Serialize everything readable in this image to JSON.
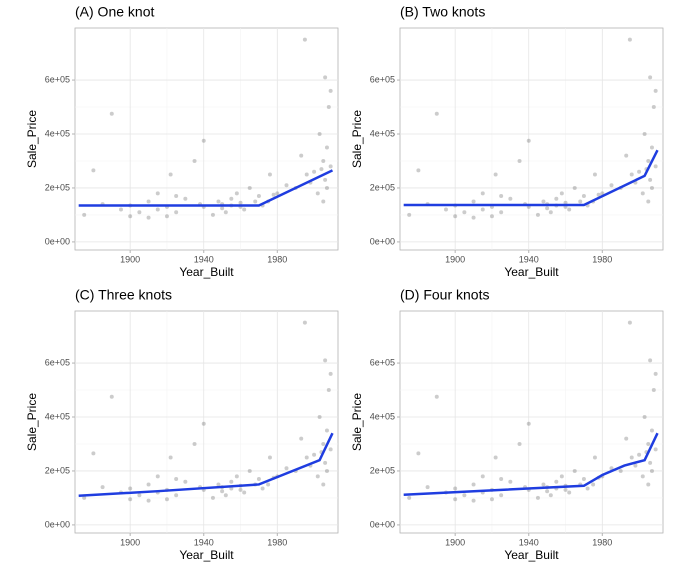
{
  "chart_data": [
    {
      "type": "scatter",
      "title": "(A) One knot",
      "x_label": "Year_Built",
      "y_label": "Sale_Price",
      "xlim": [
        1870,
        2013
      ],
      "ylim": [
        -30000,
        793000
      ],
      "xticks": [
        1900,
        1940,
        1980
      ],
      "yticks": [
        {
          "value": 0,
          "label": "0e+00"
        },
        {
          "value": 200000,
          "label": "2e+05"
        },
        {
          "value": 400000,
          "label": "4e+05"
        },
        {
          "value": 600000,
          "label": "6e+05"
        }
      ],
      "grid": true,
      "points": {
        "color": "#000000",
        "x": [
          1875,
          1880,
          1885,
          1890,
          1895,
          1900,
          1900,
          1905,
          1910,
          1910,
          1915,
          1915,
          1920,
          1920,
          1922,
          1925,
          1925,
          1930,
          1935,
          1938,
          1940,
          1940,
          1945,
          1948,
          1950,
          1950,
          1952,
          1955,
          1955,
          1958,
          1960,
          1960,
          1962,
          1965,
          1968,
          1970,
          1972,
          1975,
          1976,
          1978,
          1980,
          1985,
          1990,
          1993,
          1995,
          1996,
          1998,
          2000,
          2002,
          2003,
          2004,
          2005,
          2005,
          2006,
          2006,
          2007,
          2007,
          2008,
          2009,
          2009
        ],
        "y": [
          100000,
          265000,
          140000,
          475000,
          120000,
          135000,
          95000,
          110000,
          150000,
          90000,
          180000,
          120000,
          130000,
          95000,
          250000,
          170000,
          110000,
          160000,
          300000,
          140000,
          375000,
          130000,
          100000,
          150000,
          125000,
          140000,
          110000,
          135000,
          160000,
          180000,
          130000,
          145000,
          120000,
          200000,
          150000,
          170000,
          135000,
          150000,
          250000,
          175000,
          180000,
          210000,
          200000,
          320000,
          750000,
          250000,
          220000,
          260000,
          180000,
          400000,
          270000,
          300000,
          150000,
          610000,
          230000,
          350000,
          200000,
          500000,
          280000,
          560000
        ]
      },
      "fit": {
        "color": "#1f3de0",
        "x": [
          1872,
          1970,
          2010
        ],
        "y": [
          135000,
          135000,
          265000
        ]
      }
    },
    {
      "type": "scatter",
      "title": "(B) Two knots",
      "x_label": "Year_Built",
      "y_label": "Sale_Price",
      "xlim": [
        1870,
        2013
      ],
      "ylim": [
        -30000,
        793000
      ],
      "xticks": [
        1900,
        1940,
        1980
      ],
      "yticks": [
        {
          "value": 0,
          "label": "0e+00"
        },
        {
          "value": 200000,
          "label": "2e+05"
        },
        {
          "value": 400000,
          "label": "4e+05"
        },
        {
          "value": 600000,
          "label": "6e+05"
        }
      ],
      "grid": true,
      "points": {
        "color": "#000000",
        "x": [
          1875,
          1880,
          1885,
          1890,
          1895,
          1900,
          1900,
          1905,
          1910,
          1910,
          1915,
          1915,
          1920,
          1920,
          1922,
          1925,
          1925,
          1930,
          1935,
          1938,
          1940,
          1940,
          1945,
          1948,
          1950,
          1950,
          1952,
          1955,
          1955,
          1958,
          1960,
          1960,
          1962,
          1965,
          1968,
          1970,
          1972,
          1975,
          1976,
          1978,
          1980,
          1985,
          1990,
          1993,
          1995,
          1996,
          1998,
          2000,
          2002,
          2003,
          2004,
          2005,
          2005,
          2006,
          2006,
          2007,
          2007,
          2008,
          2009,
          2009
        ],
        "y": [
          100000,
          265000,
          140000,
          475000,
          120000,
          135000,
          95000,
          110000,
          150000,
          90000,
          180000,
          120000,
          130000,
          95000,
          250000,
          170000,
          110000,
          160000,
          300000,
          140000,
          375000,
          130000,
          100000,
          150000,
          125000,
          140000,
          110000,
          135000,
          160000,
          180000,
          130000,
          145000,
          120000,
          200000,
          150000,
          170000,
          135000,
          150000,
          250000,
          175000,
          180000,
          210000,
          200000,
          320000,
          750000,
          250000,
          220000,
          260000,
          180000,
          400000,
          270000,
          300000,
          150000,
          610000,
          230000,
          350000,
          200000,
          500000,
          280000,
          560000
        ]
      },
      "fit": {
        "color": "#1f3de0",
        "x": [
          1872,
          1970,
          2003,
          2010
        ],
        "y": [
          137000,
          137000,
          245000,
          340000
        ]
      }
    },
    {
      "type": "scatter",
      "title": "(C) Three knots",
      "x_label": "Year_Built",
      "y_label": "Sale_Price",
      "xlim": [
        1870,
        2013
      ],
      "ylim": [
        -30000,
        793000
      ],
      "xticks": [
        1900,
        1940,
        1980
      ],
      "yticks": [
        {
          "value": 0,
          "label": "0e+00"
        },
        {
          "value": 200000,
          "label": "2e+05"
        },
        {
          "value": 400000,
          "label": "4e+05"
        },
        {
          "value": 600000,
          "label": "6e+05"
        }
      ],
      "grid": true,
      "points": {
        "color": "#000000",
        "x": [
          1875,
          1880,
          1885,
          1890,
          1895,
          1900,
          1900,
          1905,
          1910,
          1910,
          1915,
          1915,
          1920,
          1920,
          1922,
          1925,
          1925,
          1930,
          1935,
          1938,
          1940,
          1940,
          1945,
          1948,
          1950,
          1950,
          1952,
          1955,
          1955,
          1958,
          1960,
          1960,
          1962,
          1965,
          1968,
          1970,
          1972,
          1975,
          1976,
          1978,
          1980,
          1985,
          1990,
          1993,
          1995,
          1996,
          1998,
          2000,
          2002,
          2003,
          2004,
          2005,
          2005,
          2006,
          2006,
          2007,
          2007,
          2008,
          2009,
          2009
        ],
        "y": [
          100000,
          265000,
          140000,
          475000,
          120000,
          135000,
          95000,
          110000,
          150000,
          90000,
          180000,
          120000,
          130000,
          95000,
          250000,
          170000,
          110000,
          160000,
          300000,
          140000,
          375000,
          130000,
          100000,
          150000,
          125000,
          140000,
          110000,
          135000,
          160000,
          180000,
          130000,
          145000,
          120000,
          200000,
          150000,
          170000,
          135000,
          150000,
          250000,
          175000,
          180000,
          210000,
          200000,
          320000,
          750000,
          250000,
          220000,
          260000,
          180000,
          400000,
          270000,
          300000,
          150000,
          610000,
          230000,
          350000,
          200000,
          500000,
          280000,
          560000
        ]
      },
      "fit": {
        "color": "#1f3de0",
        "x": [
          1872,
          1915,
          1970,
          2003,
          2010
        ],
        "y": [
          108000,
          125000,
          150000,
          240000,
          340000
        ]
      }
    },
    {
      "type": "scatter",
      "title": "(D) Four knots",
      "x_label": "Year_Built",
      "y_label": "Sale_Price",
      "xlim": [
        1870,
        2013
      ],
      "ylim": [
        -30000,
        793000
      ],
      "xticks": [
        1900,
        1940,
        1980
      ],
      "yticks": [
        {
          "value": 0,
          "label": "0e+00"
        },
        {
          "value": 200000,
          "label": "2e+05"
        },
        {
          "value": 400000,
          "label": "4e+05"
        },
        {
          "value": 600000,
          "label": "6e+05"
        }
      ],
      "grid": true,
      "points": {
        "color": "#000000",
        "x": [
          1875,
          1880,
          1885,
          1890,
          1895,
          1900,
          1900,
          1905,
          1910,
          1910,
          1915,
          1915,
          1920,
          1920,
          1922,
          1925,
          1925,
          1930,
          1935,
          1938,
          1940,
          1940,
          1945,
          1948,
          1950,
          1950,
          1952,
          1955,
          1955,
          1958,
          1960,
          1960,
          1962,
          1965,
          1968,
          1970,
          1972,
          1975,
          1976,
          1978,
          1980,
          1985,
          1990,
          1993,
          1995,
          1996,
          1998,
          2000,
          2002,
          2003,
          2004,
          2005,
          2005,
          2006,
          2006,
          2007,
          2007,
          2008,
          2009,
          2009
        ],
        "y": [
          100000,
          265000,
          140000,
          475000,
          120000,
          135000,
          95000,
          110000,
          150000,
          90000,
          180000,
          120000,
          130000,
          95000,
          250000,
          170000,
          110000,
          160000,
          300000,
          140000,
          375000,
          130000,
          100000,
          150000,
          125000,
          140000,
          110000,
          135000,
          160000,
          180000,
          130000,
          145000,
          120000,
          200000,
          150000,
          170000,
          135000,
          150000,
          250000,
          175000,
          180000,
          210000,
          200000,
          320000,
          750000,
          250000,
          220000,
          260000,
          180000,
          400000,
          270000,
          300000,
          150000,
          610000,
          230000,
          350000,
          200000,
          500000,
          280000,
          560000
        ]
      },
      "fit": {
        "color": "#1f3de0",
        "x": [
          1872,
          1970,
          1980,
          1992,
          2003,
          2010
        ],
        "y": [
          112000,
          145000,
          185000,
          220000,
          240000,
          340000
        ]
      }
    }
  ]
}
